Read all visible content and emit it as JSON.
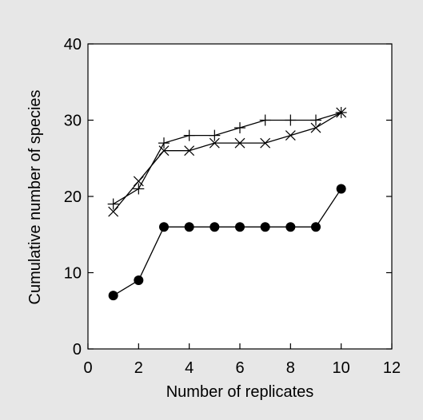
{
  "chart_data": {
    "type": "line",
    "title": "",
    "xlabel": "Number of replicates",
    "ylabel": "Cumulative number of species",
    "xlim": [
      0,
      12
    ],
    "ylim": [
      0,
      40
    ],
    "xticks": [
      0,
      2,
      4,
      6,
      8,
      10,
      12
    ],
    "yticks": [
      0,
      10,
      20,
      30,
      40
    ],
    "grid": false,
    "legend": "none",
    "series": [
      {
        "marker": "plus",
        "color": "#000000",
        "x": [
          1,
          2,
          3,
          4,
          5,
          6,
          7,
          8,
          9,
          10
        ],
        "y": [
          19,
          21,
          27,
          28,
          28,
          29,
          30,
          30,
          30,
          31
        ]
      },
      {
        "marker": "cross",
        "color": "#000000",
        "x": [
          1,
          2,
          3,
          4,
          5,
          6,
          7,
          8,
          9,
          10
        ],
        "y": [
          18,
          22,
          26,
          26,
          27,
          27,
          27,
          28,
          29,
          31
        ]
      },
      {
        "marker": "filled-circle",
        "color": "#000000",
        "x": [
          1,
          2,
          3,
          4,
          5,
          6,
          7,
          8,
          9,
          10
        ],
        "y": [
          7,
          9,
          16,
          16,
          16,
          16,
          16,
          16,
          16,
          21
        ]
      }
    ]
  }
}
